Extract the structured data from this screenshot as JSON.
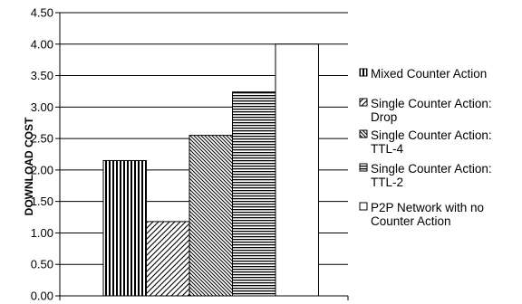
{
  "chart_data": {
    "type": "bar",
    "title": "",
    "xlabel": "",
    "ylabel": "DOWNLOAD COST",
    "ylim": [
      0,
      4.5
    ],
    "yticks": [
      "0.00",
      "0.50",
      "1.00",
      "1.50",
      "2.00",
      "2.50",
      "3.00",
      "3.50",
      "4.00",
      "4.50"
    ],
    "grid": true,
    "legend_position": "right",
    "series": [
      {
        "name": "Mixed Counter Action",
        "values": [
          2.15
        ],
        "pattern": "vertical-lines"
      },
      {
        "name": "Single Counter Action: Drop",
        "values": [
          1.18
        ],
        "pattern": "diagonal-up"
      },
      {
        "name": "Single Counter Action: TTL-4",
        "values": [
          2.55
        ],
        "pattern": "diagonal-down"
      },
      {
        "name": "Single Counter Action: TTL-2",
        "values": [
          3.24
        ],
        "pattern": "horizontal-lines"
      },
      {
        "name": "P2P Network with no Counter Action",
        "values": [
          4.0
        ],
        "pattern": "solid-white"
      }
    ],
    "legend_lines": [
      [
        "Mixed Counter Action"
      ],
      [
        "Single Counter Action:",
        "Drop"
      ],
      [
        "Single Counter Action:",
        "TTL-4"
      ],
      [
        "Single Counter Action:",
        "TTL-2"
      ],
      [
        "P2P Network with no",
        "Counter Action"
      ]
    ]
  }
}
